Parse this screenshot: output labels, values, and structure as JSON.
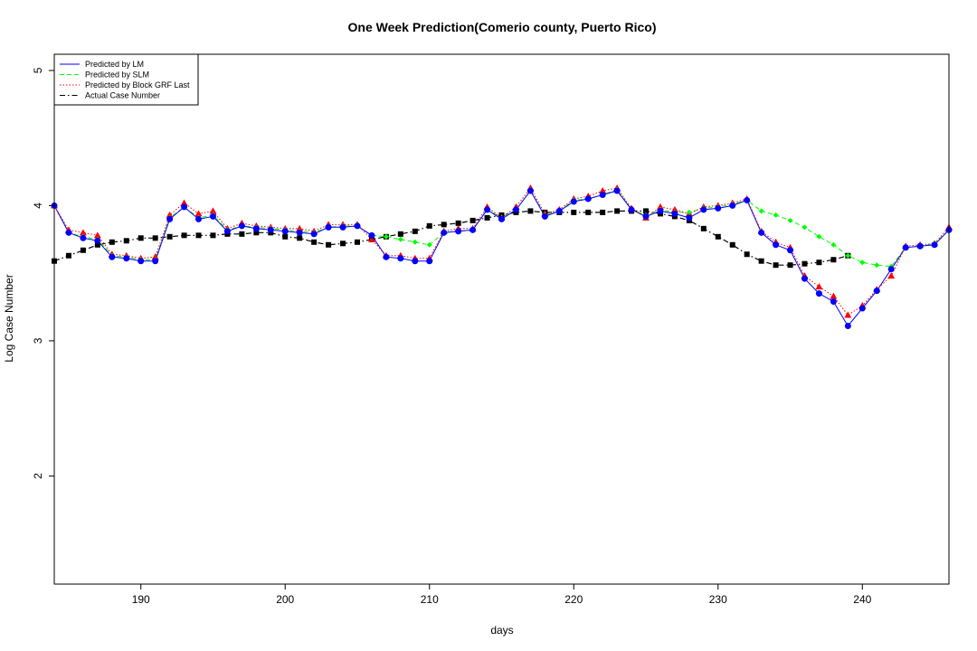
{
  "chart_data": {
    "type": "line",
    "title": "One Week Prediction(Comerio county, Puerto Rico)",
    "xlabel": "days",
    "ylabel": "Log Case Number",
    "xlim": [
      184,
      246
    ],
    "ylim": [
      1.2,
      5.12
    ],
    "x_ticks": [
      190,
      200,
      210,
      220,
      230,
      240
    ],
    "y_ticks": [
      2,
      3,
      4,
      5
    ],
    "legend_position": "top-left",
    "grid": false,
    "x": [
      184,
      185,
      186,
      187,
      188,
      189,
      190,
      191,
      192,
      193,
      194,
      195,
      196,
      197,
      198,
      199,
      200,
      201,
      202,
      203,
      204,
      205,
      206,
      207,
      208,
      209,
      210,
      211,
      212,
      213,
      214,
      215,
      216,
      217,
      218,
      219,
      220,
      221,
      222,
      223,
      224,
      225,
      226,
      227,
      228,
      229,
      230,
      231,
      232,
      233,
      234,
      235,
      236,
      237,
      238,
      239,
      240,
      241,
      242,
      243,
      244,
      245,
      246
    ],
    "series": [
      {
        "name": "Predicted by LM",
        "color": "#0000ff",
        "line_style": "solid",
        "marker": "circle",
        "values": [
          4.0,
          3.8,
          3.76,
          3.74,
          3.62,
          3.61,
          3.59,
          3.59,
          3.9,
          3.99,
          3.9,
          3.92,
          3.81,
          3.85,
          3.83,
          3.82,
          3.81,
          3.8,
          3.79,
          3.84,
          3.84,
          3.85,
          3.78,
          3.62,
          3.61,
          3.59,
          3.59,
          3.8,
          3.81,
          3.82,
          3.97,
          3.9,
          3.97,
          4.11,
          3.92,
          3.96,
          4.03,
          4.05,
          4.08,
          4.11,
          3.97,
          3.92,
          3.96,
          3.94,
          3.91,
          3.97,
          3.98,
          4.0,
          4.04,
          3.8,
          3.71,
          3.67,
          3.46,
          3.35,
          3.29,
          3.11,
          3.24,
          3.37,
          3.53,
          3.69,
          3.7,
          3.71,
          3.82
        ]
      },
      {
        "name": "Predicted by SLM",
        "color": "#00ff00",
        "line_style": "dashed",
        "marker": "diamond",
        "values": [
          4.0,
          3.8,
          3.77,
          3.75,
          3.63,
          3.62,
          3.6,
          3.6,
          3.91,
          3.99,
          3.91,
          3.93,
          3.82,
          3.85,
          3.84,
          3.83,
          3.82,
          3.81,
          3.8,
          3.84,
          3.85,
          3.85,
          3.78,
          3.77,
          3.75,
          3.73,
          3.71,
          3.8,
          3.81,
          3.82,
          3.97,
          3.91,
          3.97,
          4.11,
          3.93,
          3.96,
          4.04,
          4.05,
          4.08,
          4.12,
          3.97,
          3.93,
          3.97,
          3.95,
          3.95,
          3.98,
          3.99,
          4.01,
          4.04,
          3.96,
          3.93,
          3.89,
          3.84,
          3.77,
          3.71,
          3.63,
          3.58,
          3.56,
          3.55,
          3.69,
          3.7,
          3.72,
          3.82
        ]
      },
      {
        "name": "Predicted by Block GRF Last",
        "color": "#ff0000",
        "line_style": "dotted",
        "marker": "triangle",
        "values": [
          4.0,
          3.82,
          3.8,
          3.78,
          3.64,
          3.63,
          3.61,
          3.62,
          3.93,
          4.02,
          3.94,
          3.96,
          3.83,
          3.87,
          3.85,
          3.84,
          3.83,
          3.83,
          3.81,
          3.86,
          3.86,
          3.86,
          3.75,
          3.63,
          3.63,
          3.61,
          3.61,
          3.81,
          3.83,
          3.83,
          3.99,
          3.91,
          3.99,
          4.13,
          3.94,
          3.97,
          4.05,
          4.07,
          4.11,
          4.13,
          3.98,
          3.91,
          3.99,
          3.97,
          3.94,
          3.99,
          4.0,
          4.02,
          4.05,
          3.81,
          3.73,
          3.69,
          3.48,
          3.4,
          3.33,
          3.19,
          3.26,
          3.38,
          3.48,
          3.7,
          3.71,
          3.72,
          3.84
        ]
      },
      {
        "name": "Actual Case Number",
        "color": "#000000",
        "line_style": "dotdash",
        "marker": "square",
        "values": [
          3.59,
          3.63,
          3.67,
          3.71,
          3.73,
          3.74,
          3.76,
          3.76,
          3.77,
          3.78,
          3.78,
          3.78,
          3.79,
          3.79,
          3.8,
          3.8,
          3.77,
          3.76,
          3.73,
          3.71,
          3.72,
          3.73,
          3.75,
          3.77,
          3.79,
          3.81,
          3.85,
          3.86,
          3.87,
          3.89,
          3.91,
          3.93,
          3.95,
          3.96,
          3.95,
          3.95,
          3.95,
          3.95,
          3.95,
          3.96,
          3.96,
          3.96,
          3.94,
          3.92,
          3.89,
          3.83,
          3.77,
          3.71,
          3.64,
          3.59,
          3.56,
          3.56,
          3.57,
          3.58,
          3.6,
          3.63,
          null,
          null,
          null,
          null,
          null,
          null,
          null
        ]
      }
    ]
  }
}
